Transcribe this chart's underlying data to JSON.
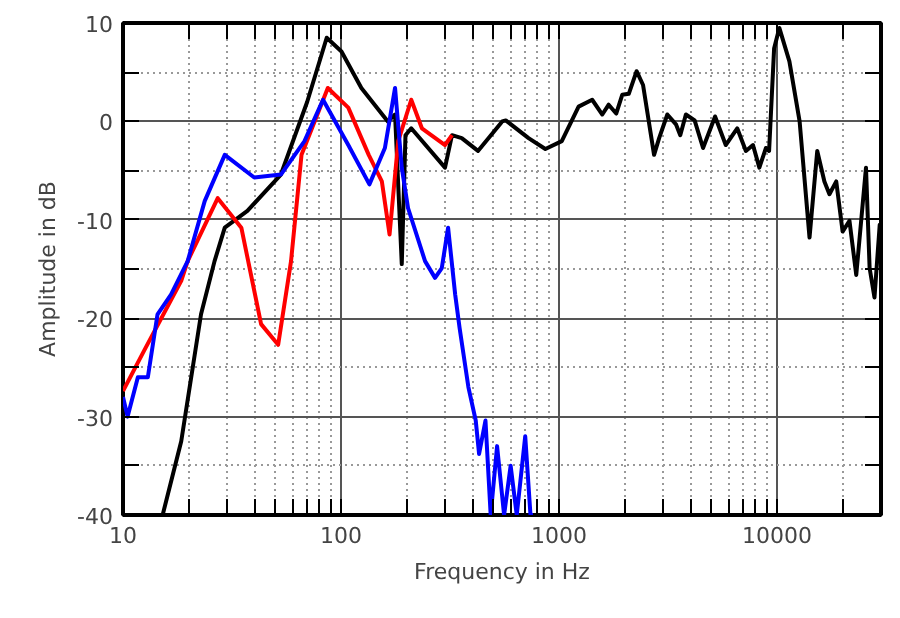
{
  "chart_data": {
    "type": "line",
    "xlabel": "Frequency in Hz",
    "ylabel": "Amplitude in dB",
    "log": "x",
    "xlim": [
      10,
      30000
    ],
    "xticks": [
      10,
      100,
      1000,
      10000
    ],
    "ylim": [
      -40,
      10
    ],
    "yticks": [
      -40,
      -30,
      -20,
      -10,
      0,
      10
    ],
    "grid": true,
    "marker": "none",
    "line_style": "solid",
    "series": [
      {
        "color": "#000000",
        "x": [
          15.2,
          18.5,
          22.8,
          26.3,
          29.3,
          37.2,
          53,
          70,
          86,
          100.5,
          124,
          164,
          177,
          190,
          197.6,
          210,
          300,
          323,
          358,
          425,
          549,
          570,
          725,
          866,
          1030,
          1230,
          1420,
          1580,
          1690,
          1830,
          1950,
          2090,
          2270,
          2430,
          2730,
          2880,
          3140,
          3440,
          3600,
          3820,
          4190,
          4580,
          5200,
          5820,
          6570,
          7200,
          7760,
          8300,
          8900,
          9200,
          9700,
          10250,
          11400,
          12700,
          14100,
          15300,
          16500,
          17400,
          18700,
          20000,
          21500,
          23100,
          25600,
          26600,
          28000,
          29600,
          30000
        ],
        "values": [
          -40,
          -32.5,
          -19.6,
          -14.2,
          -10.8,
          -9.1,
          -5.4,
          2,
          8.5,
          7.1,
          3.4,
          0,
          0.7,
          -14.5,
          -1.4,
          -0.7,
          -4.7,
          -1.4,
          -1.7,
          -3,
          0,
          0.1,
          -1.7,
          -2.8,
          -2,
          1.5,
          2.2,
          0.7,
          1.7,
          0.8,
          2.7,
          2.8,
          5.1,
          3.7,
          -3.4,
          -1.7,
          0.7,
          -0.3,
          -1.4,
          0.7,
          0.1,
          -2.7,
          0.5,
          -2.4,
          -0.7,
          -3,
          -2.4,
          -4.7,
          -2.7,
          -3,
          7.4,
          9.5,
          6.1,
          0,
          -11.8,
          -3,
          -6.1,
          -7.4,
          -6.1,
          -11.2,
          -10.1,
          -15.6,
          -4.7,
          -14.9,
          -17.9,
          -10.5,
          -13
        ]
      },
      {
        "color": "#ff0000",
        "x": [
          10,
          12.5,
          18.5,
          19.8,
          27.2,
          34.9,
          43,
          51.5,
          59,
          65.9,
          87,
          108,
          134,
          154,
          167,
          183,
          210,
          235,
          300,
          323
        ],
        "values": [
          -27.4,
          -23.3,
          -16.2,
          -14.2,
          -7.8,
          -10.8,
          -20.6,
          -22.7,
          -14.2,
          -3.4,
          3.4,
          1.4,
          -3.4,
          -6.1,
          -11.5,
          -2,
          2.2,
          -0.7,
          -2.4,
          -1.4
        ]
      },
      {
        "color": "#0000ff",
        "x": [
          10,
          10.5,
          11.7,
          13,
          14.4,
          16.6,
          19.8,
          23.7,
          29.3,
          40,
          53,
          68,
          82.7,
          108,
          135,
          159,
          177,
          190,
          203,
          243,
          270,
          290,
          310,
          334,
          350,
          384,
          415,
          430,
          460,
          486,
          520,
          560,
          600,
          640,
          700,
          740,
          760
        ],
        "values": [
          -28,
          -30,
          -26,
          -26,
          -19.6,
          -17.6,
          -14.2,
          -8.1,
          -3.4,
          -5.7,
          -5.4,
          -2,
          2.2,
          -2.4,
          -6.4,
          -2.7,
          3.4,
          -4.7,
          -8.8,
          -14.2,
          -15.9,
          -14.9,
          -10.8,
          -17.6,
          -21,
          -27,
          -30.4,
          -33.8,
          -30.4,
          -40,
          -33,
          -40,
          -35,
          -40,
          -32,
          -40,
          -40
        ]
      }
    ]
  }
}
